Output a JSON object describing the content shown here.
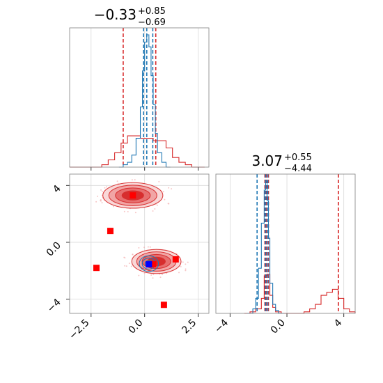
{
  "chart_data": [
    {
      "type": "histogram",
      "panel": "top-left",
      "title": {
        "value": "−0.33",
        "upper": "+0.85",
        "lower": "−0.69"
      },
      "xlim": [
        -3.5,
        3.0
      ],
      "xticks": [
        -2.5,
        0.0,
        2.5
      ],
      "grid": true,
      "series": [
        {
          "color": "#d62728",
          "bins": [
            -3.5,
            -3.2,
            -2.9,
            -2.6,
            -2.3,
            -2.0,
            -1.7,
            -1.4,
            -1.1,
            -0.8,
            -0.5,
            -0.2,
            0.1,
            0.4,
            0.7,
            1.0,
            1.3,
            1.6,
            1.9,
            2.2,
            2.5,
            2.8
          ],
          "counts": [
            0,
            0,
            0,
            0,
            0,
            1,
            3,
            6,
            10,
            13,
            13,
            12,
            12,
            11,
            11,
            8,
            4,
            2,
            1,
            0,
            0
          ],
          "quantile_lines": [
            -1.0,
            0.52
          ]
        },
        {
          "color": "#1f77b4",
          "bins": [
            -1.2,
            -1.0,
            -0.8,
            -0.6,
            -0.4,
            -0.2,
            -0.1,
            0.0,
            0.1,
            0.2,
            0.3,
            0.4,
            0.5,
            0.6,
            0.8,
            1.0,
            1.2
          ],
          "counts": [
            0,
            1,
            2,
            5,
            12,
            25,
            40,
            52,
            55,
            50,
            38,
            26,
            14,
            6,
            2,
            0
          ],
          "quantile_lines": [
            -0.05,
            0.1,
            0.38
          ]
        }
      ]
    },
    {
      "type": "scatter",
      "panel": "bottom-left",
      "xlim": [
        -3.5,
        3.0
      ],
      "ylim": [
        -5.0,
        4.8
      ],
      "xticks": [
        -2.5,
        0.0,
        2.5
      ],
      "yticks": [
        -4,
        0,
        4
      ],
      "grid": true,
      "density_regions": [
        {
          "cx": -0.55,
          "cy": 3.3,
          "rx": 1.4,
          "ry": 0.9,
          "color": "#d62728"
        },
        {
          "cx": 0.55,
          "cy": -1.35,
          "rx": 1.15,
          "ry": 0.85,
          "color": "#d62728"
        },
        {
          "cx": 0.2,
          "cy": -1.5,
          "rx": 0.45,
          "ry": 0.55,
          "color": "#1f77b4"
        }
      ],
      "points_red": [
        [
          -0.55,
          3.3
        ],
        [
          -1.6,
          0.8
        ],
        [
          -2.25,
          -1.8
        ],
        [
          1.45,
          -1.2
        ],
        [
          0.9,
          -4.4
        ],
        [
          0.4,
          -1.55
        ]
      ],
      "points_blue": [
        [
          0.2,
          -1.55
        ]
      ]
    },
    {
      "type": "histogram",
      "panel": "bottom-right",
      "title": {
        "value": "3.07",
        "upper": "+0.55",
        "lower": "−4.44"
      },
      "xlim": [
        -5.0,
        4.8
      ],
      "xticks": [
        -4,
        0,
        4
      ],
      "grid": true,
      "series": [
        {
          "color": "#d62728",
          "bins": [
            -3.0,
            -2.6,
            -2.2,
            -1.8,
            -1.6,
            -1.4,
            -1.2,
            -1.0,
            -0.8,
            -0.4,
            0.0,
            0.4,
            0.8,
            1.2,
            1.6,
            2.0,
            2.4,
            2.8,
            3.2,
            3.6,
            4.0,
            4.4,
            4.8
          ],
          "counts": [
            0,
            1,
            3,
            10,
            25,
            26,
            12,
            4,
            1,
            0,
            0,
            0,
            0,
            1,
            3,
            6,
            12,
            14,
            16,
            10,
            3,
            1
          ],
          "quantile_lines": [
            -1.55,
            -1.45,
            -1.3,
            3.62
          ]
        },
        {
          "color": "#1f77b4",
          "bins": [
            -2.8,
            -2.4,
            -2.2,
            -2.0,
            -1.8,
            -1.6,
            -1.5,
            -1.4,
            -1.3,
            -1.2,
            -1.0,
            -0.8,
            -0.6,
            -0.2
          ],
          "counts": [
            0,
            3,
            10,
            30,
            60,
            82,
            88,
            75,
            50,
            20,
            6,
            2,
            0
          ],
          "quantile_lines": [
            -2.1,
            -1.5,
            -1.35
          ]
        }
      ]
    }
  ]
}
